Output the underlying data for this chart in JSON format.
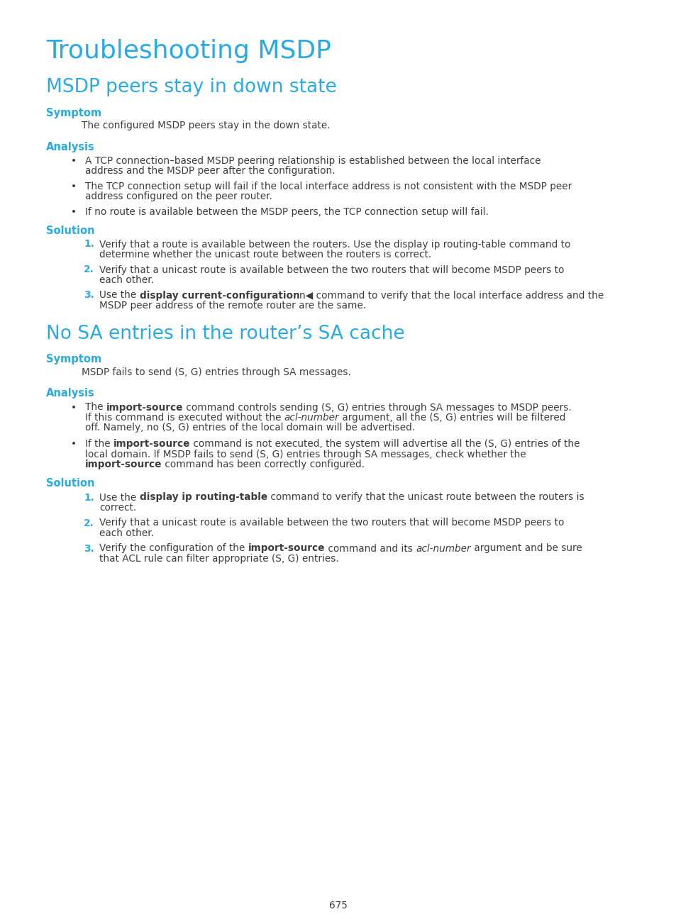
{
  "bg_color": "#ffffff",
  "cyan_color": "#29ABE2",
  "text_color": "#3d3d3d",
  "page_number": "675",
  "main_title": "Troubleshooting MSDP",
  "section1_title": "MSDP peers stay in down state",
  "section1_symptom_label": "Symptom",
  "section1_symptom_text": "The configured MSDP peers stay in the down state.",
  "section1_analysis_label": "Analysis",
  "section1_analysis_bullets": [
    "A TCP connection–based MSDP peering relationship is established between the local interface\naddress and the MSDP peer after the configuration.",
    "The TCP connection setup will fail if the local interface address is not consistent with the MSDP peer\naddress configured on the peer router.",
    "If no route is available between the MSDP peers, the TCP connection setup will fail."
  ],
  "section1_solution_label": "Solution",
  "section1_solution_items": [
    {
      "num": "1.",
      "lines": [
        "Verify that a route is available between the routers. Use the display ip routing-table command to",
        "determine whether the unicast route between the routers is correct."
      ],
      "bold_ranges": []
    },
    {
      "num": "2.",
      "lines": [
        "Verify that a unicast route is available between the two routers that will become MSDP peers to",
        "each other."
      ],
      "bold_ranges": []
    },
    {
      "num": "3.",
      "lines": [
        "Use the ▶display current-configuration◀ command to verify that the local interface address and the",
        "MSDP peer address of the remote router are the same."
      ],
      "bold_word": "display current-configuration"
    }
  ],
  "section2_title": "No SA entries in the router’s SA cache",
  "section2_symptom_label": "Symptom",
  "section2_symptom_text": "MSDP fails to send (S, G) entries through SA messages.",
  "section2_analysis_label": "Analysis",
  "section2_analysis_bullets_plain": [
    "The import-source command controls sending (S, G) entries through SA messages to MSDP peers.\nIf this command is executed without the acl-number argument, all the (S, G) entries will be filtered\noff. Namely, no (S, G) entries of the local domain will be advertised.",
    "If the import-source command is not executed, the system will advertise all the (S, G) entries of the\nlocal domain. If MSDP fails to send (S, G) entries through SA messages, check whether the\nimport-source command has been correctly configured."
  ],
  "section2_analysis_bullets": [
    [
      {
        "text": "The ",
        "bold": false,
        "italic": false
      },
      {
        "text": "import-source",
        "bold": true,
        "italic": false
      },
      {
        "text": " command controls sending (S, G) entries through SA messages to MSDP peers.\nIf this command is executed without the ",
        "bold": false,
        "italic": false
      },
      {
        "text": "acl-number",
        "bold": false,
        "italic": true
      },
      {
        "text": " argument, all the (S, G) entries will be filtered\noff. Namely, no (S, G) entries of the local domain will be advertised.",
        "bold": false,
        "italic": false
      }
    ],
    [
      {
        "text": "If the ",
        "bold": false,
        "italic": false
      },
      {
        "text": "import-source",
        "bold": true,
        "italic": false
      },
      {
        "text": " command is not executed, the system will advertise all the (S, G) entries of the\nlocal domain. If MSDP fails to send (S, G) entries through SA messages, check whether the\n",
        "bold": false,
        "italic": false
      },
      {
        "text": "import-source",
        "bold": true,
        "italic": false
      },
      {
        "text": " command has been correctly configured.",
        "bold": false,
        "italic": false
      }
    ]
  ],
  "section2_solution_label": "Solution",
  "section2_solution_items": [
    {
      "num": "1.",
      "parts": [
        {
          "text": "Use the ",
          "bold": false,
          "italic": false
        },
        {
          "text": "display ip routing-table",
          "bold": true,
          "italic": false
        },
        {
          "text": " command to verify that the unicast route between the routers is\ncorrect.",
          "bold": false,
          "italic": false
        }
      ]
    },
    {
      "num": "2.",
      "parts": [
        {
          "text": "Verify that a unicast route is available between the two routers that will become MSDP peers to\neach other.",
          "bold": false,
          "italic": false
        }
      ]
    },
    {
      "num": "3.",
      "parts": [
        {
          "text": "Verify the configuration of the ",
          "bold": false,
          "italic": false
        },
        {
          "text": "import-source",
          "bold": true,
          "italic": false
        },
        {
          "text": " command and its ",
          "bold": false,
          "italic": false
        },
        {
          "text": "acl-number",
          "bold": false,
          "italic": true
        },
        {
          "text": " argument and be sure\nthat ACL rule can filter appropriate (S, G) entries.",
          "bold": false,
          "italic": false
        }
      ]
    }
  ]
}
